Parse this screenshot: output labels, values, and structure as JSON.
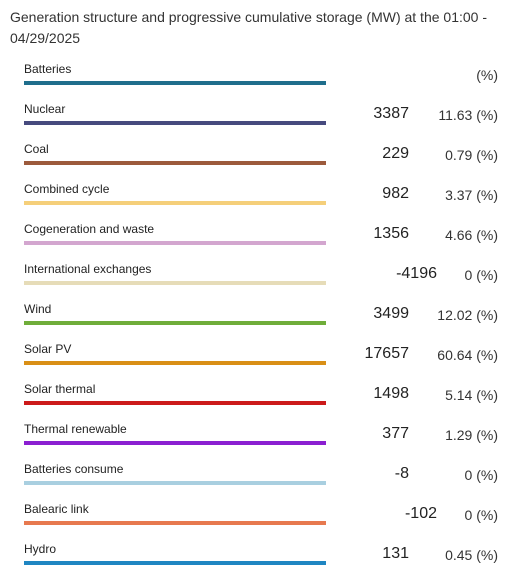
{
  "title": "Generation structure and progressive cumulative storage (MW) at the 01:00 - 04/29/2025",
  "rows": [
    {
      "label": "Batteries",
      "value": "",
      "percent": "(%)",
      "color": "#1f6e8c"
    },
    {
      "label": "Nuclear",
      "value": "3387",
      "percent": "11.63 (%)",
      "color": "#464a7e"
    },
    {
      "label": "Coal",
      "value": "229",
      "percent": "0.79 (%)",
      "color": "#9c5a3c"
    },
    {
      "label": "Combined cycle",
      "value": "982",
      "percent": "3.37 (%)",
      "color": "#f5cf7a"
    },
    {
      "label": "Cogeneration and waste",
      "value": "1356",
      "percent": "4.66 (%)",
      "color": "#d3a6cf"
    },
    {
      "label": "International exchanges",
      "value": "-4196",
      "percent": "0 (%)",
      "color": "#e6dcb8"
    },
    {
      "label": "Wind",
      "value": "3499",
      "percent": "12.02 (%)",
      "color": "#6fad3a"
    },
    {
      "label": "Solar PV",
      "value": "17657",
      "percent": "60.64 (%)",
      "color": "#d98f16"
    },
    {
      "label": "Solar thermal",
      "value": "1498",
      "percent": "5.14 (%)",
      "color": "#cc1a1a"
    },
    {
      "label": "Thermal renewable",
      "value": "377",
      "percent": "1.29 (%)",
      "color": "#8b1fd1"
    },
    {
      "label": "Batteries consume",
      "value": "-8",
      "percent": "0 (%)",
      "color": "#a9cfe0"
    },
    {
      "label": "Balearic link",
      "value": "-102",
      "percent": "0 (%)",
      "color": "#e7794f"
    },
    {
      "label": "Hydro",
      "value": "131",
      "percent": "0.45 (%)",
      "color": "#1f86c2"
    }
  ]
}
